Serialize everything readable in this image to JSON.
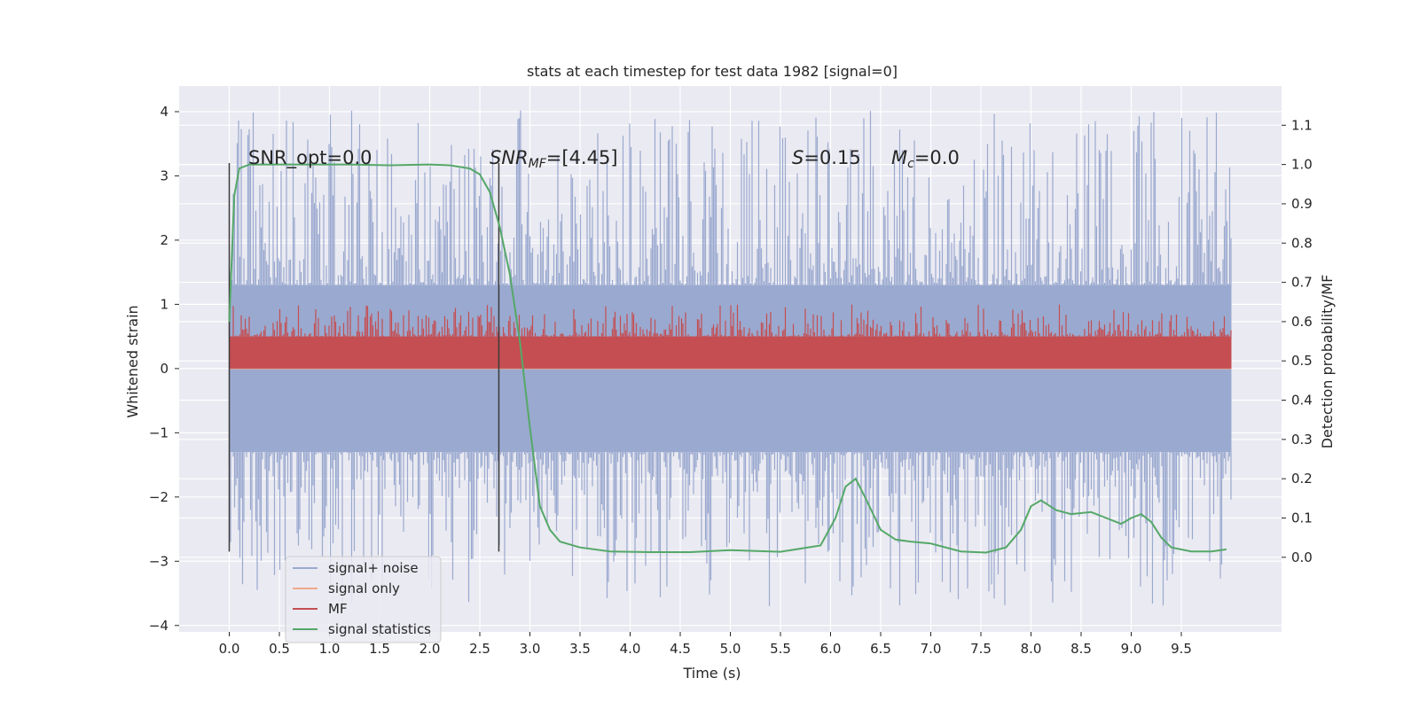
{
  "chart_data": {
    "type": "line",
    "title": "stats at each timestep for test data 1982 [signal=0]",
    "xlabel": "Time (s)",
    "ylabel": "Whitened strain",
    "y2label": "Detection probability/MF",
    "xlim": [
      -0.5,
      10.5
    ],
    "ylim": [
      -4.1,
      4.4
    ],
    "y2lim": [
      -0.19,
      1.2
    ],
    "x_ticks": [
      "0.0",
      "0.5",
      "1.0",
      "1.5",
      "2.0",
      "2.5",
      "3.0",
      "3.5",
      "4.0",
      "4.5",
      "5.0",
      "5.5",
      "6.0",
      "6.5",
      "7.0",
      "7.5",
      "8.0",
      "8.5",
      "9.0",
      "9.5"
    ],
    "y_ticks": [
      "4",
      "3",
      "2",
      "1",
      "0",
      "−1",
      "−2",
      "−3",
      "−4"
    ],
    "y2_ticks": [
      "1.1",
      "1.0",
      "0.9",
      "0.8",
      "0.7",
      "0.6",
      "0.5",
      "0.4",
      "0.3",
      "0.2",
      "0.1",
      "0.0"
    ],
    "grid": true,
    "legend": "lower-left",
    "annotations": {
      "snr_opt": "SNR_opt=0.0",
      "snr_mf_sym": "SNR",
      "snr_mf_sub": "MF",
      "snr_mf_val": "=[4.45]",
      "s_sym": "S",
      "s_val": "=0.15",
      "mc_sym": "M",
      "mc_sub": "c",
      "mc_val": "=0.0"
    },
    "vlines": [
      0.0,
      2.69
    ],
    "series": [
      {
        "name": "signal+ noise",
        "color": "#9aa9cf",
        "axis": "left",
        "kind": "noise",
        "x_range": [
          0.0,
          10.0
        ],
        "core_amplitude": 1.3,
        "peak_max": 4.05,
        "peak_min": -3.7
      },
      {
        "name": "signal only",
        "color": "#eea98c",
        "axis": "left",
        "kind": "flat",
        "value": 0.0
      },
      {
        "name": "MF",
        "color": "#c44e52",
        "axis": "left",
        "kind": "noise",
        "x_range": [
          0.0,
          10.0
        ],
        "baseline": 0.0,
        "core_amplitude": 0.5,
        "peak_max": 1.0
      },
      {
        "name": "signal statistics",
        "color": "#55a868",
        "axis": "right",
        "x": [
          0.0,
          0.05,
          0.1,
          0.2,
          0.4,
          0.8,
          1.2,
          1.6,
          2.0,
          2.2,
          2.4,
          2.5,
          2.6,
          2.7,
          2.8,
          2.9,
          3.0,
          3.1,
          3.2,
          3.3,
          3.5,
          3.8,
          4.2,
          4.6,
          5.0,
          5.5,
          5.9,
          6.05,
          6.15,
          6.25,
          6.35,
          6.5,
          6.65,
          6.8,
          7.0,
          7.3,
          7.55,
          7.75,
          7.9,
          8.0,
          8.1,
          8.25,
          8.4,
          8.6,
          8.75,
          8.9,
          9.0,
          9.1,
          9.2,
          9.3,
          9.4,
          9.6,
          9.8,
          9.95
        ],
        "y": [
          0.6,
          0.92,
          0.99,
          1.0,
          1.0,
          1.0,
          1.0,
          0.998,
          1.0,
          0.998,
          0.99,
          0.975,
          0.93,
          0.84,
          0.72,
          0.55,
          0.33,
          0.13,
          0.07,
          0.04,
          0.025,
          0.015,
          0.013,
          0.013,
          0.018,
          0.014,
          0.03,
          0.1,
          0.18,
          0.2,
          0.15,
          0.07,
          0.045,
          0.04,
          0.035,
          0.015,
          0.012,
          0.025,
          0.07,
          0.13,
          0.145,
          0.12,
          0.11,
          0.115,
          0.1,
          0.085,
          0.1,
          0.11,
          0.09,
          0.05,
          0.025,
          0.015,
          0.015,
          0.02
        ]
      }
    ]
  }
}
